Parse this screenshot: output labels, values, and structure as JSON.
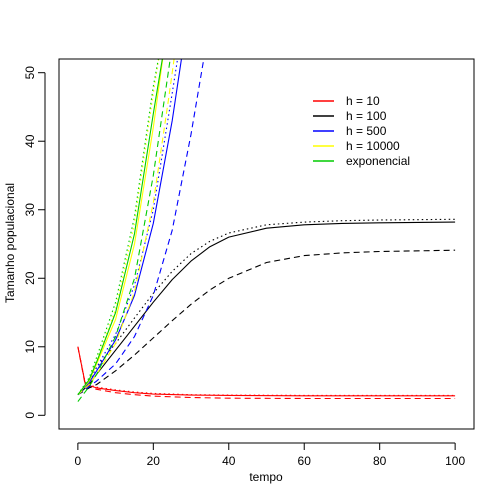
{
  "chart_data": {
    "type": "line",
    "title": "",
    "xlabel": "tempo",
    "ylabel": "Tamanho populacional",
    "xlim": [
      -5,
      105
    ],
    "ylim": [
      -2,
      52
    ],
    "x_ticks": [
      0,
      20,
      40,
      60,
      80,
      100
    ],
    "y_ticks": [
      0,
      10,
      20,
      30,
      40,
      50
    ],
    "grid": false,
    "legend_position": "top-right",
    "legend": [
      {
        "label": "h = 10",
        "color": "#ff0000"
      },
      {
        "label": "h = 100",
        "color": "#000000"
      },
      {
        "label": "h = 500",
        "color": "#0000ff"
      },
      {
        "label": "h = 10000",
        "color": "#ffff00"
      },
      {
        "label": "exponencial",
        "color": "#00cc00"
      }
    ],
    "series": [
      {
        "color": "#ff0000",
        "dash": "solid",
        "x": [
          0,
          2,
          5,
          10,
          15,
          20,
          30,
          40,
          60,
          80,
          100
        ],
        "y": [
          10,
          4.5,
          4.0,
          3.6,
          3.3,
          3.1,
          2.95,
          2.9,
          2.85,
          2.85,
          2.85
        ]
      },
      {
        "color": "#ff0000",
        "dash": "dashed",
        "x": [
          0,
          2,
          5,
          10,
          15,
          20,
          30,
          40,
          60,
          80,
          100
        ],
        "y": [
          10,
          4.3,
          3.8,
          3.3,
          3.0,
          2.8,
          2.6,
          2.5,
          2.45,
          2.45,
          2.45
        ]
      },
      {
        "color": "#ff0000",
        "dash": "dotted",
        "x": [
          0,
          2,
          5,
          10,
          15,
          20,
          30,
          40,
          60,
          80,
          100
        ],
        "y": [
          10,
          4.6,
          4.1,
          3.7,
          3.4,
          3.2,
          3.0,
          2.95,
          2.9,
          2.9,
          2.9
        ]
      },
      {
        "color": "#000000",
        "dash": "solid",
        "x": [
          0,
          3,
          5,
          10,
          15,
          20,
          25,
          30,
          35,
          40,
          50,
          60,
          70,
          80,
          100
        ],
        "y": [
          3,
          4.5,
          6,
          9.5,
          13,
          16.5,
          19.8,
          22.5,
          24.6,
          26,
          27.3,
          27.8,
          28,
          28.1,
          28.2
        ]
      },
      {
        "color": "#000000",
        "dash": "dashed",
        "x": [
          0,
          3,
          5,
          10,
          15,
          20,
          25,
          30,
          35,
          40,
          50,
          60,
          70,
          80,
          100
        ],
        "y": [
          3,
          4,
          4.5,
          6.5,
          8.8,
          11.3,
          13.8,
          16.2,
          18.3,
          20,
          22.3,
          23.3,
          23.7,
          23.9,
          24.1
        ]
      },
      {
        "color": "#000000",
        "dash": "dotted",
        "x": [
          0,
          3,
          5,
          10,
          15,
          20,
          25,
          30,
          35,
          40,
          50,
          60,
          70,
          80,
          100
        ],
        "y": [
          3,
          5,
          7,
          10.5,
          14.2,
          17.8,
          21,
          23.6,
          25.4,
          26.6,
          27.8,
          28.2,
          28.4,
          28.5,
          28.6
        ]
      },
      {
        "color": "#0000ff",
        "dash": "solid",
        "x": [
          0,
          3,
          5,
          10,
          15,
          20,
          25,
          28
        ],
        "y": [
          3,
          4.8,
          6.5,
          11,
          17.5,
          28,
          43,
          54
        ]
      },
      {
        "color": "#0000ff",
        "dash": "dashed",
        "x": [
          0,
          3,
          5,
          10,
          15,
          20,
          25,
          30,
          34
        ],
        "y": [
          3,
          4.2,
          5,
          7.5,
          11.5,
          17.5,
          27,
          41,
          54
        ]
      },
      {
        "color": "#0000ff",
        "dash": "dotted",
        "x": [
          0,
          3,
          5,
          10,
          15,
          20,
          25,
          27
        ],
        "y": [
          3,
          5,
          7,
          11.8,
          19,
          30,
          47,
          54
        ]
      },
      {
        "color": "#ffff00",
        "dash": "solid",
        "x": [
          0,
          3,
          5,
          10,
          15,
          20,
          23
        ],
        "y": [
          3,
          5,
          7.5,
          14,
          25,
          42,
          54
        ]
      },
      {
        "color": "#ffff00",
        "dash": "dashed",
        "x": [
          0,
          3,
          5,
          10,
          15,
          20,
          24,
          26
        ],
        "y": [
          3,
          4.5,
          6,
          10.5,
          18,
          31,
          46,
          54
        ]
      },
      {
        "color": "#ffff00",
        "dash": "dotted",
        "x": [
          0,
          3,
          5,
          10,
          15,
          20,
          22
        ],
        "y": [
          3,
          5.3,
          8,
          15.5,
          28,
          47,
          54
        ]
      },
      {
        "color": "#00cc00",
        "dash": "solid",
        "x": [
          0,
          3,
          5,
          10,
          15,
          20,
          23
        ],
        "y": [
          3,
          5.2,
          7.8,
          15,
          26.5,
          44,
          54
        ]
      },
      {
        "color": "#00cc00",
        "dash": "dashed",
        "x": [
          0,
          3,
          5,
          10,
          15,
          20,
          25
        ],
        "y": [
          2,
          4.2,
          6,
          11.5,
          20,
          35,
          54
        ]
      },
      {
        "color": "#00cc00",
        "dash": "dotted",
        "x": [
          0,
          3,
          5,
          10,
          15,
          20,
          22
        ],
        "y": [
          3,
          5.5,
          8.5,
          16.5,
          29,
          48,
          54
        ]
      }
    ]
  }
}
